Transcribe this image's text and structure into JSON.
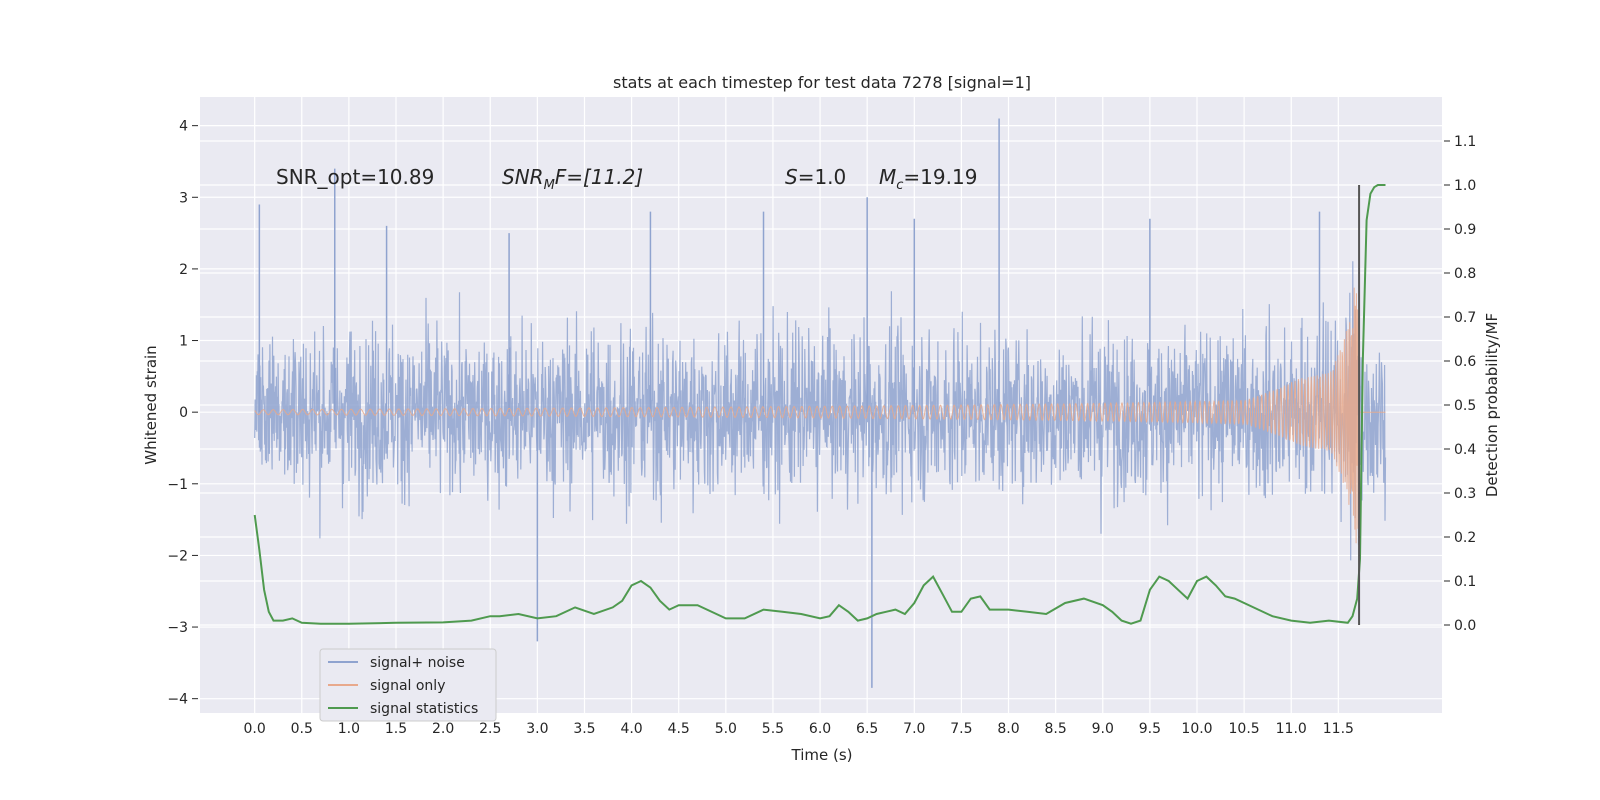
{
  "chart_data": {
    "type": "line",
    "title": "stats at each timestep for test data 7278 [signal=1]",
    "xlabel": "Time (s)",
    "ylabel": "Whitened strain",
    "ylabel_right": "Detection probability/MF",
    "xlim": [
      -0.58,
      12.6
    ],
    "ylim": [
      -4.2,
      4.4
    ],
    "ylim_right": [
      -0.2,
      1.2
    ],
    "grid": true,
    "legend_position": "lower-left",
    "xticks": [
      "0.0",
      "0.5",
      "1.0",
      "1.5",
      "2.0",
      "2.5",
      "3.0",
      "3.5",
      "4.0",
      "4.5",
      "5.0",
      "5.5",
      "6.0",
      "6.5",
      "7.0",
      "7.5",
      "8.0",
      "8.5",
      "9.0",
      "9.5",
      "10.0",
      "10.5",
      "11.0",
      "11.5"
    ],
    "yticks_left": [
      "4",
      "3",
      "2",
      "1",
      "0",
      "−1",
      "−2",
      "−3",
      "−4"
    ],
    "yticks_right": [
      "1.1",
      "1.0",
      "0.9",
      "0.8",
      "0.7",
      "0.6",
      "0.5",
      "0.4",
      "0.3",
      "0.2",
      "0.1",
      "0.0"
    ],
    "annotations": {
      "snr_opt": "SNR_opt=10.89",
      "snr_mf": "SNR",
      "snr_mf_sub": "M",
      "snr_mf_rest": "F=[11.2]",
      "s_label": "S",
      "s_value": "=1.0",
      "mc_label": "M",
      "mc_sub": "c",
      "mc_value": "=19.19"
    },
    "series": [
      {
        "name": "signal+ noise",
        "axis": "left",
        "color": "#8fa3cf",
        "t_range": [
          0.0,
          12.0
        ],
        "envelope_max": 4.1,
        "envelope_min": -3.85,
        "peaks": [
          {
            "x": 0.05,
            "y": 2.9
          },
          {
            "x": 0.85,
            "y": 3.4
          },
          {
            "x": 1.4,
            "y": 2.6
          },
          {
            "x": 2.7,
            "y": 2.5
          },
          {
            "x": 3.0,
            "y": -3.2
          },
          {
            "x": 4.2,
            "y": 2.8
          },
          {
            "x": 5.4,
            "y": 2.8
          },
          {
            "x": 6.5,
            "y": 3.0
          },
          {
            "x": 6.55,
            "y": -3.85
          },
          {
            "x": 7.0,
            "y": 2.7
          },
          {
            "x": 7.9,
            "y": 4.1
          },
          {
            "x": 9.5,
            "y": 2.7
          },
          {
            "x": 11.3,
            "y": 2.8
          }
        ]
      },
      {
        "name": "signal only",
        "axis": "left",
        "color": "#e8a98c",
        "t_range": [
          0.0,
          12.0
        ],
        "merger_time": 11.72,
        "peak_amplitude": 1.95
      },
      {
        "name": "signal statistics",
        "axis": "right",
        "color": "#4f9a4f",
        "x": [
          0.0,
          0.05,
          0.1,
          0.15,
          0.2,
          0.3,
          0.4,
          0.5,
          0.7,
          1.0,
          1.5,
          2.0,
          2.3,
          2.5,
          2.6,
          2.8,
          3.0,
          3.2,
          3.4,
          3.6,
          3.8,
          3.9,
          4.0,
          4.1,
          4.2,
          4.3,
          4.4,
          4.5,
          4.7,
          4.9,
          5.0,
          5.2,
          5.4,
          5.6,
          5.8,
          6.0,
          6.1,
          6.2,
          6.3,
          6.4,
          6.5,
          6.6,
          6.7,
          6.8,
          6.9,
          7.0,
          7.1,
          7.2,
          7.3,
          7.4,
          7.5,
          7.6,
          7.7,
          7.8,
          8.0,
          8.2,
          8.4,
          8.6,
          8.8,
          9.0,
          9.1,
          9.2,
          9.3,
          9.4,
          9.5,
          9.6,
          9.7,
          9.8,
          9.9,
          10.0,
          10.1,
          10.2,
          10.3,
          10.4,
          10.6,
          10.8,
          11.0,
          11.2,
          11.4,
          11.6,
          11.65,
          11.7,
          11.73,
          11.76,
          11.8,
          11.84,
          11.88,
          11.92,
          11.96,
          12.0
        ],
        "values": [
          0.25,
          0.17,
          0.08,
          0.03,
          0.01,
          0.01,
          0.015,
          0.005,
          0.003,
          0.003,
          0.005,
          0.006,
          0.01,
          0.02,
          0.02,
          0.025,
          0.015,
          0.02,
          0.04,
          0.025,
          0.04,
          0.055,
          0.09,
          0.1,
          0.085,
          0.055,
          0.035,
          0.045,
          0.045,
          0.025,
          0.015,
          0.015,
          0.035,
          0.03,
          0.025,
          0.015,
          0.02,
          0.045,
          0.03,
          0.01,
          0.015,
          0.025,
          0.03,
          0.035,
          0.025,
          0.05,
          0.09,
          0.11,
          0.07,
          0.03,
          0.03,
          0.06,
          0.065,
          0.035,
          0.035,
          0.03,
          0.025,
          0.05,
          0.06,
          0.045,
          0.03,
          0.01,
          0.003,
          0.01,
          0.08,
          0.11,
          0.1,
          0.08,
          0.06,
          0.1,
          0.11,
          0.09,
          0.065,
          0.06,
          0.04,
          0.02,
          0.01,
          0.005,
          0.01,
          0.005,
          0.02,
          0.06,
          0.15,
          0.6,
          0.92,
          0.98,
          0.995,
          1.0,
          1.0,
          1.0
        ]
      }
    ],
    "vline": {
      "x": 11.72,
      "color": "#555555",
      "y_bottom": 0.0,
      "y_top": 1.0,
      "axis": "right"
    }
  }
}
